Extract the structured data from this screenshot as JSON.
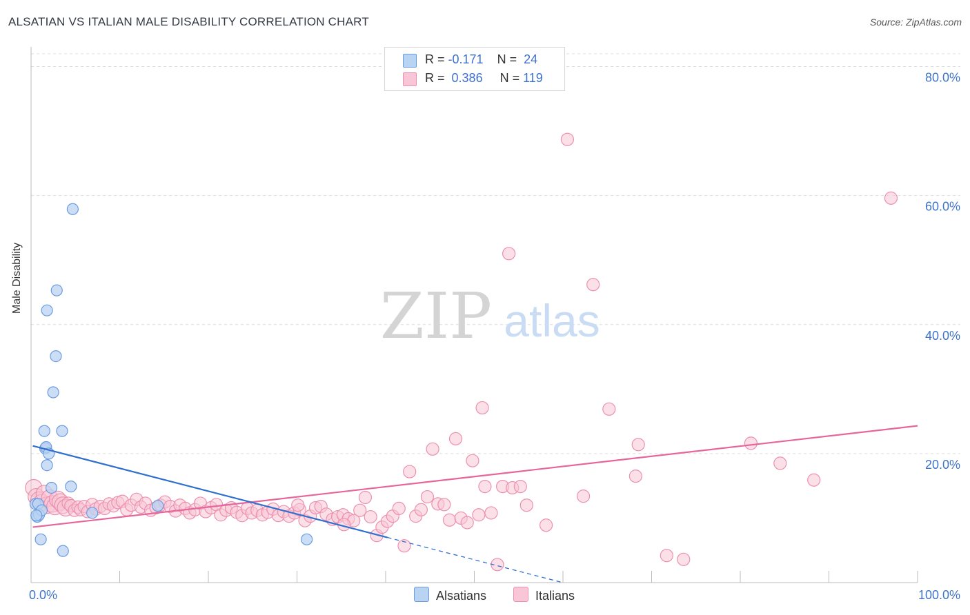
{
  "title": "ALSATIAN VS ITALIAN MALE DISABILITY CORRELATION CHART",
  "source": "Source: ZipAtlas.com",
  "watermark": {
    "zip": "ZIP",
    "atlas": "atlas"
  },
  "legend_top": {
    "rows": [
      {
        "r_label": "R = ",
        "r_value": "-0.171",
        "n_label": "N = ",
        "n_value": "24"
      },
      {
        "r_label": "R = ",
        "r_value": "0.386",
        "n_label": "N = ",
        "n_value": "119"
      }
    ]
  },
  "colors": {
    "alsatian_fill": "#b9d3f3",
    "alsatian_stroke": "#6a9be0",
    "alsatian_line": "#2f6fce",
    "italian_fill": "#f8c6d6",
    "italian_stroke": "#ec8fb0",
    "italian_line": "#e6669a",
    "tick_label": "#3d74c8",
    "grid": "#dcdcdc"
  },
  "chart_data": {
    "type": "scatter",
    "title": "ALSATIAN VS ITALIAN MALE DISABILITY CORRELATION CHART",
    "xlabel": "",
    "ylabel": "Male Disability",
    "xlim": [
      0,
      100
    ],
    "ylim": [
      0,
      80
    ],
    "x_tick_labels": [
      "0.0%",
      "100.0%"
    ],
    "y_ticks": [
      20,
      40,
      60,
      80
    ],
    "y_tick_labels": [
      "20.0%",
      "40.0%",
      "60.0%",
      "80.0%"
    ],
    "grid": "horizontal dashed",
    "series": [
      {
        "name": "Alsatians",
        "r": -0.171,
        "n": 24,
        "trend": {
          "x0": 0.2,
          "y0": 21.2,
          "x1": 40.2,
          "y1": 7.0
        },
        "trend_dashed": {
          "x0": 40.2,
          "y0": 7.0,
          "x1": 60.0,
          "y1": 0.0
        },
        "points": [
          [
            0.5,
            12.2
          ],
          [
            0.7,
            10.2
          ],
          [
            0.9,
            10.5
          ],
          [
            0.8,
            12.2
          ],
          [
            1.2,
            11.2
          ],
          [
            1.5,
            23.5
          ],
          [
            1.6,
            20.8
          ],
          [
            1.7,
            21.0
          ],
          [
            1.8,
            42.2
          ],
          [
            1.8,
            18.2
          ],
          [
            2.0,
            20.0
          ],
          [
            2.3,
            14.7
          ],
          [
            2.5,
            29.5
          ],
          [
            2.8,
            35.1
          ],
          [
            2.9,
            45.3
          ],
          [
            3.5,
            23.5
          ],
          [
            4.7,
            57.9
          ],
          [
            4.5,
            14.9
          ],
          [
            1.1,
            6.7
          ],
          [
            3.6,
            4.9
          ],
          [
            6.9,
            10.8
          ],
          [
            14.3,
            11.9
          ],
          [
            31.1,
            6.7
          ],
          [
            0.6,
            10.4
          ]
        ]
      },
      {
        "name": "Italians",
        "r": 0.386,
        "n": 119,
        "trend": {
          "x0": 0.2,
          "y0": 8.6,
          "x1": 100.0,
          "y1": 24.3
        },
        "points": [
          [
            0.3,
            14.7
          ],
          [
            0.6,
            13.3
          ],
          [
            0.9,
            12.8
          ],
          [
            1.2,
            12.4
          ],
          [
            1.5,
            13.8
          ],
          [
            1.8,
            12.0
          ],
          [
            2.1,
            13.1
          ],
          [
            2.4,
            12.2
          ],
          [
            2.7,
            11.8
          ],
          [
            3.0,
            12.9
          ],
          [
            3.3,
            12.5
          ],
          [
            3.6,
            12.0
          ],
          [
            3.9,
            11.6
          ],
          [
            4.2,
            12.3
          ],
          [
            4.5,
            11.9
          ],
          [
            4.9,
            11.2
          ],
          [
            5.3,
            11.7
          ],
          [
            5.6,
            11.3
          ],
          [
            6.0,
            11.8
          ],
          [
            6.4,
            11.0
          ],
          [
            6.9,
            12.1
          ],
          [
            7.3,
            11.4
          ],
          [
            7.8,
            11.8
          ],
          [
            8.3,
            11.5
          ],
          [
            8.8,
            12.2
          ],
          [
            9.3,
            11.9
          ],
          [
            9.8,
            12.4
          ],
          [
            10.3,
            12.6
          ],
          [
            10.8,
            11.3
          ],
          [
            11.3,
            12.0
          ],
          [
            11.9,
            12.9
          ],
          [
            12.4,
            11.7
          ],
          [
            12.9,
            12.3
          ],
          [
            13.5,
            11.2
          ],
          [
            14.1,
            11.6
          ],
          [
            14.6,
            12.0
          ],
          [
            15.1,
            12.5
          ],
          [
            15.7,
            11.8
          ],
          [
            16.3,
            11.1
          ],
          [
            16.8,
            12.0
          ],
          [
            17.4,
            11.5
          ],
          [
            17.9,
            10.8
          ],
          [
            18.5,
            11.3
          ],
          [
            19.1,
            12.3
          ],
          [
            19.7,
            11.0
          ],
          [
            20.3,
            11.6
          ],
          [
            20.9,
            12.1
          ],
          [
            21.4,
            10.5
          ],
          [
            22.0,
            11.2
          ],
          [
            22.6,
            11.6
          ],
          [
            23.2,
            10.9
          ],
          [
            23.8,
            10.4
          ],
          [
            24.4,
            11.5
          ],
          [
            24.9,
            10.8
          ],
          [
            25.5,
            11.2
          ],
          [
            26.1,
            10.5
          ],
          [
            26.7,
            10.9
          ],
          [
            27.3,
            11.4
          ],
          [
            27.9,
            10.4
          ],
          [
            28.5,
            11.0
          ],
          [
            29.1,
            10.3
          ],
          [
            29.7,
            10.8
          ],
          [
            30.3,
            11.3
          ],
          [
            30.9,
            9.6
          ],
          [
            31.5,
            10.3
          ],
          [
            32.1,
            11.6
          ],
          [
            32.7,
            11.8
          ],
          [
            33.3,
            10.6
          ],
          [
            34.0,
            9.8
          ],
          [
            34.6,
            10.2
          ],
          [
            35.2,
            10.5
          ],
          [
            35.8,
            9.9
          ],
          [
            36.4,
            9.6
          ],
          [
            37.1,
            11.2
          ],
          [
            37.7,
            13.2
          ],
          [
            38.3,
            10.2
          ],
          [
            39.0,
            7.3
          ],
          [
            39.6,
            8.6
          ],
          [
            40.2,
            9.5
          ],
          [
            40.8,
            10.3
          ],
          [
            41.5,
            11.5
          ],
          [
            42.1,
            5.7
          ],
          [
            42.7,
            17.2
          ],
          [
            43.4,
            10.3
          ],
          [
            44.0,
            11.3
          ],
          [
            44.7,
            13.3
          ],
          [
            45.3,
            20.7
          ],
          [
            45.9,
            12.2
          ],
          [
            46.6,
            12.1
          ],
          [
            47.2,
            9.7
          ],
          [
            47.9,
            22.3
          ],
          [
            48.5,
            10.0
          ],
          [
            49.2,
            9.3
          ],
          [
            49.8,
            18.9
          ],
          [
            50.5,
            10.5
          ],
          [
            50.9,
            27.1
          ],
          [
            51.2,
            14.9
          ],
          [
            51.9,
            10.8
          ],
          [
            52.6,
            2.8
          ],
          [
            53.2,
            14.9
          ],
          [
            53.9,
            51.0
          ],
          [
            54.3,
            14.7
          ],
          [
            55.2,
            14.9
          ],
          [
            55.9,
            12.0
          ],
          [
            58.1,
            8.9
          ],
          [
            60.5,
            68.7
          ],
          [
            62.3,
            13.4
          ],
          [
            63.4,
            46.2
          ],
          [
            65.2,
            26.9
          ],
          [
            68.5,
            21.4
          ],
          [
            71.7,
            4.2
          ],
          [
            73.6,
            3.6
          ],
          [
            81.2,
            21.6
          ],
          [
            84.5,
            18.5
          ],
          [
            88.3,
            15.9
          ],
          [
            97.0,
            59.6
          ],
          [
            68.2,
            16.5
          ],
          [
            35.3,
            9.0
          ],
          [
            30.1,
            12.0
          ]
        ]
      }
    ]
  },
  "bottom_legend": [
    {
      "label": "Alsatians"
    },
    {
      "label": "Italians"
    }
  ]
}
